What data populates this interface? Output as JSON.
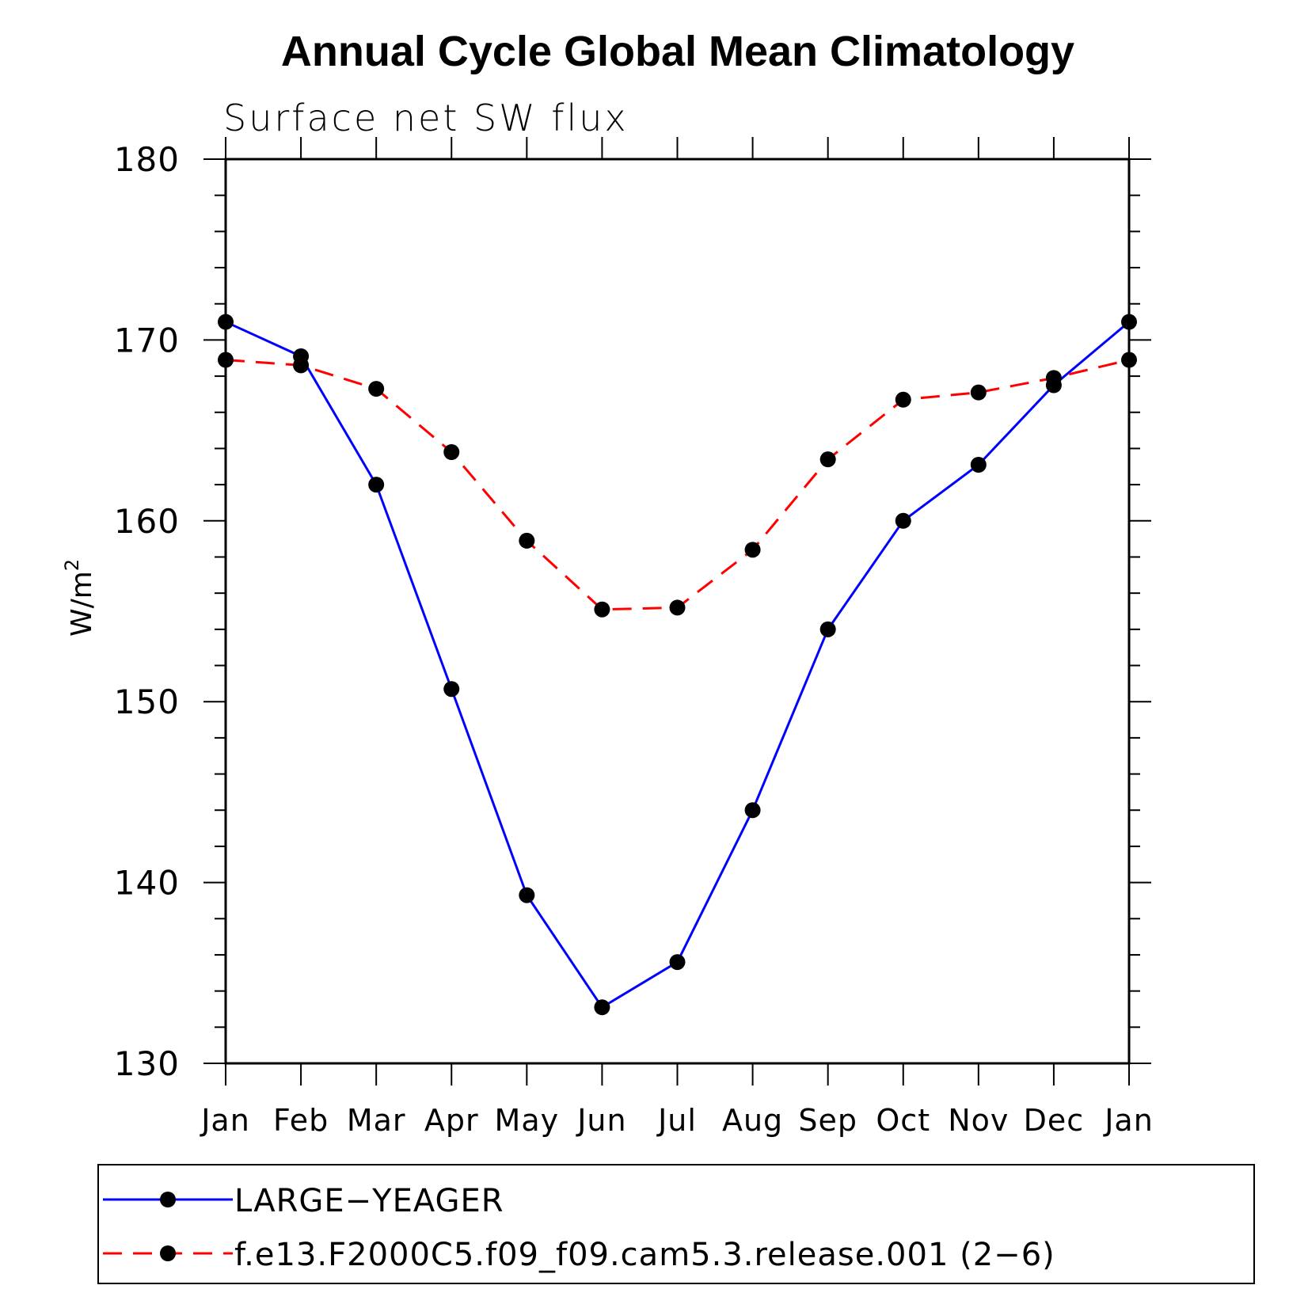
{
  "chart_data": {
    "type": "line",
    "title": "Annual Cycle Global Mean Climatology",
    "subtitle": "Surface net SW flux",
    "ylabel": "W/m",
    "ylabel_sup": "2",
    "xlabel": "",
    "categories": [
      "Jan",
      "Feb",
      "Mar",
      "Apr",
      "May",
      "Jun",
      "Jul",
      "Aug",
      "Sep",
      "Oct",
      "Nov",
      "Dec",
      "Jan"
    ],
    "ylim": [
      130,
      180
    ],
    "yticks": [
      130,
      140,
      150,
      160,
      170,
      180
    ],
    "grid": false,
    "legend_position": "bottom",
    "series": [
      {
        "name": "LARGE−YEAGER",
        "color": "#0000ff",
        "line_style": "solid",
        "marker": "filled-circle",
        "values": [
          171.0,
          169.1,
          162.0,
          150.7,
          139.3,
          133.1,
          135.6,
          144.0,
          154.0,
          160.0,
          163.1,
          167.5,
          171.0
        ]
      },
      {
        "name": "f.e13.F2000C5.f09_f09.cam5.3.release.001 (2−6)",
        "color": "#ff0000",
        "line_style": "dashed",
        "marker": "filled-circle",
        "values": [
          168.9,
          168.6,
          167.3,
          163.8,
          158.9,
          155.1,
          155.2,
          158.4,
          163.4,
          166.7,
          167.1,
          167.9,
          168.9
        ]
      }
    ]
  }
}
